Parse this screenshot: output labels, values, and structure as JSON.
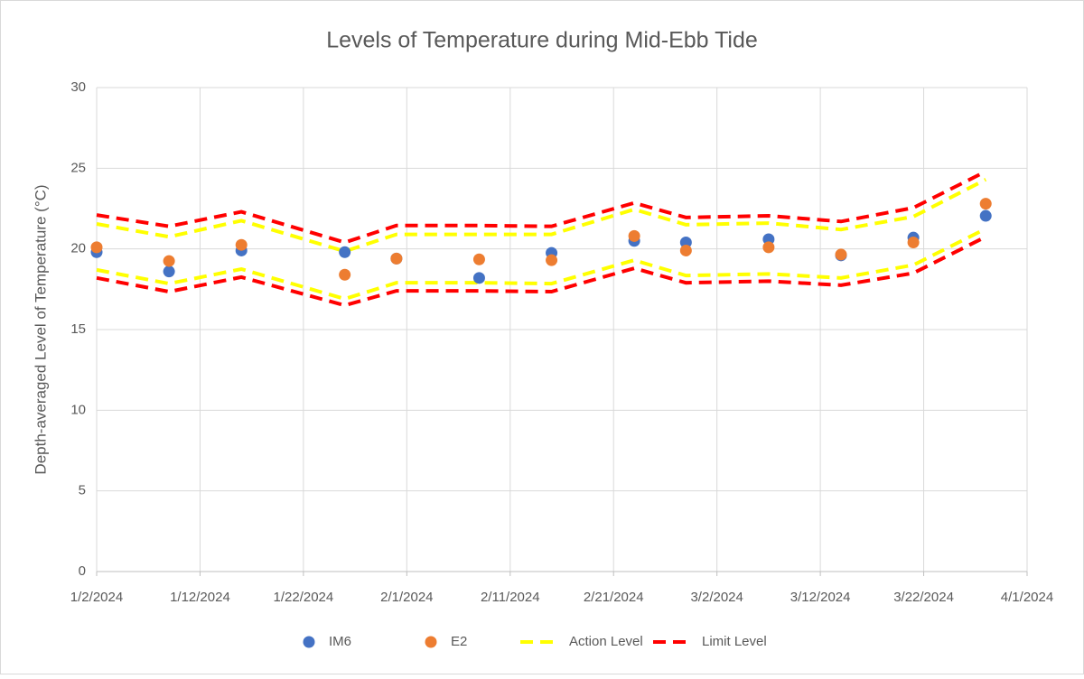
{
  "chart_data": {
    "type": "scatter-line",
    "title": "Levels of Temperature during Mid-Ebb Tide",
    "y_label": "Depth-averaged Level of Temperature (°C)",
    "x": [
      "1/2/2024",
      "1/9/2024",
      "1/16/2024",
      "1/26/2024",
      "1/31/2024",
      "2/8/2024",
      "2/15/2024",
      "2/23/2024",
      "2/28/2024",
      "3/7/2024",
      "3/14/2024",
      "3/21/2024",
      "3/28/2024"
    ],
    "series": [
      {
        "name": "IM6",
        "kind": "points",
        "color": "#4472c4",
        "values": [
          19.8,
          18.6,
          19.9,
          19.8,
          19.4,
          18.2,
          19.75,
          20.5,
          20.4,
          20.6,
          19.6,
          20.7,
          22.05
        ]
      },
      {
        "name": "E2",
        "kind": "points",
        "color": "#ed7d31",
        "values": [
          20.1,
          19.25,
          20.25,
          18.4,
          19.4,
          19.35,
          19.3,
          20.8,
          19.9,
          20.1,
          19.65,
          20.4,
          22.8
        ]
      },
      {
        "name": "Action Level",
        "kind": "band",
        "color": "#ffff00",
        "upper": [
          21.55,
          20.75,
          21.75,
          19.85,
          20.9,
          20.9,
          20.9,
          22.45,
          21.5,
          21.6,
          21.2,
          22.0,
          24.3
        ],
        "lower": [
          18.7,
          17.85,
          18.75,
          16.9,
          17.9,
          17.9,
          17.85,
          19.3,
          18.35,
          18.45,
          18.2,
          19.0,
          21.25
        ]
      },
      {
        "name": "Limit Level",
        "kind": "band",
        "color": "#ff0000",
        "upper": [
          22.1,
          21.4,
          22.3,
          20.4,
          21.45,
          21.45,
          21.4,
          22.85,
          21.95,
          22.05,
          21.7,
          22.55,
          24.8
        ],
        "lower": [
          18.2,
          17.35,
          18.25,
          16.5,
          17.4,
          17.4,
          17.35,
          18.8,
          17.9,
          18.0,
          17.75,
          18.5,
          20.75
        ]
      }
    ],
    "xlim": [
      "1/2/2024",
      "4/1/2024"
    ],
    "xticks": [
      "1/2/2024",
      "1/12/2024",
      "1/22/2024",
      "2/1/2024",
      "2/11/2024",
      "2/21/2024",
      "3/2/2024",
      "3/12/2024",
      "3/22/2024",
      "4/1/2024"
    ],
    "ylim": [
      0,
      30
    ],
    "yticks": [
      0,
      5,
      10,
      15,
      20,
      25,
      30
    ],
    "grid": true,
    "legend": "bottom"
  }
}
